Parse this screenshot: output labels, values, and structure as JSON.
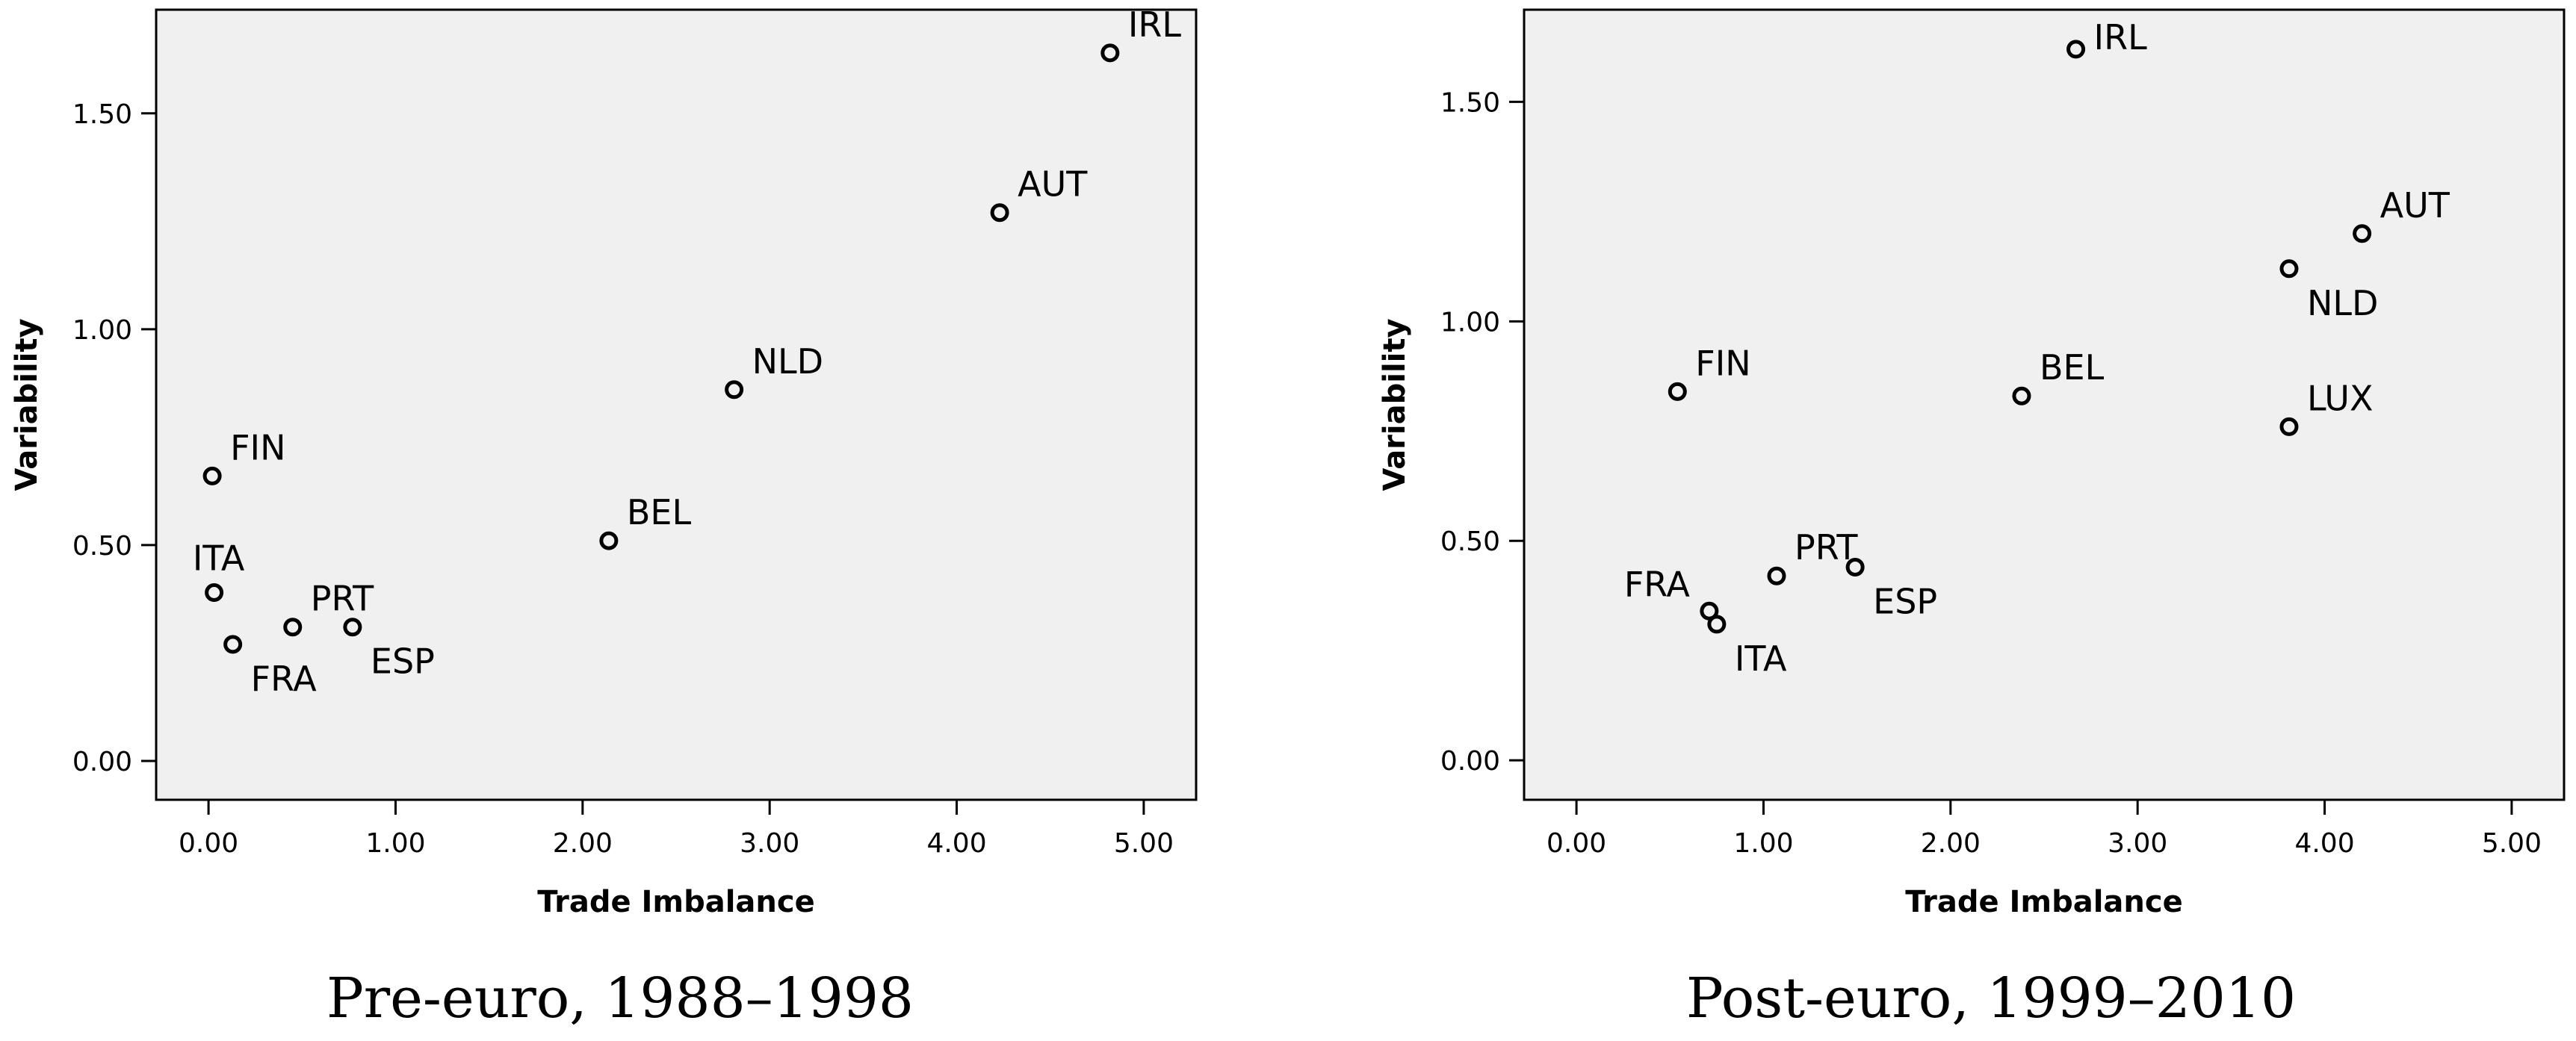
{
  "chart_data": [
    {
      "type": "scatter",
      "caption": "Pre-euro, 1988–1998",
      "xlabel": "Trade Imbalance",
      "ylabel": "Variability",
      "xlim": [
        -0.28,
        5.28
      ],
      "ylim": [
        -0.09,
        1.74
      ],
      "xticks": [
        "0.00",
        "1.00",
        "2.00",
        "3.00",
        "4.00",
        "5.00"
      ],
      "yticks": [
        "0.00",
        "0.50",
        "1.00",
        "1.50"
      ],
      "grid": false,
      "points": [
        {
          "label": "IRL",
          "x": 4.82,
          "y": 1.64,
          "label_pos": "upper-right"
        },
        {
          "label": "AUT",
          "x": 4.23,
          "y": 1.27,
          "label_pos": "upper-right"
        },
        {
          "label": "NLD",
          "x": 2.81,
          "y": 0.86,
          "label_pos": "upper-right"
        },
        {
          "label": "BEL",
          "x": 2.14,
          "y": 0.51,
          "label_pos": "upper-right"
        },
        {
          "label": "FIN",
          "x": 0.02,
          "y": 0.66,
          "label_pos": "upper-right"
        },
        {
          "label": "ITA",
          "x": 0.03,
          "y": 0.39,
          "label_pos": "above"
        },
        {
          "label": "FRA",
          "x": 0.13,
          "y": 0.27,
          "label_pos": "lower-right"
        },
        {
          "label": "PRT",
          "x": 0.45,
          "y": 0.31,
          "label_pos": "upper-right"
        },
        {
          "label": "ESP",
          "x": 0.77,
          "y": 0.31,
          "label_pos": "lower-right"
        }
      ]
    },
    {
      "type": "scatter",
      "caption": "Post-euro, 1999–2010",
      "xlabel": "Trade Imbalance",
      "ylabel": "Variability",
      "xlim": [
        -0.28,
        5.28
      ],
      "ylim": [
        -0.09,
        1.71
      ],
      "xticks": [
        "0.00",
        "1.00",
        "2.00",
        "3.00",
        "4.00",
        "5.00"
      ],
      "yticks": [
        "0.00",
        "0.50",
        "1.00",
        "1.50"
      ],
      "grid": false,
      "points": [
        {
          "label": "IRL",
          "x": 2.67,
          "y": 1.62,
          "label_pos": "right"
        },
        {
          "label": "AUT",
          "x": 4.2,
          "y": 1.2,
          "label_pos": "upper-right"
        },
        {
          "label": "NLD",
          "x": 3.81,
          "y": 1.12,
          "label_pos": "lower-right"
        },
        {
          "label": "LUX",
          "x": 3.81,
          "y": 0.76,
          "label_pos": "upper-right"
        },
        {
          "label": "BEL",
          "x": 2.38,
          "y": 0.83,
          "label_pos": "upper-right"
        },
        {
          "label": "FIN",
          "x": 0.54,
          "y": 0.84,
          "label_pos": "upper-right"
        },
        {
          "label": "PRT",
          "x": 1.07,
          "y": 0.42,
          "label_pos": "upper-right"
        },
        {
          "label": "ESP",
          "x": 1.49,
          "y": 0.44,
          "label_pos": "lower-right"
        },
        {
          "label": "FRA",
          "x": 0.71,
          "y": 0.34,
          "label_pos": "upper-left"
        },
        {
          "label": "ITA",
          "x": 0.75,
          "y": 0.31,
          "label_pos": "lower-right"
        }
      ]
    }
  ]
}
